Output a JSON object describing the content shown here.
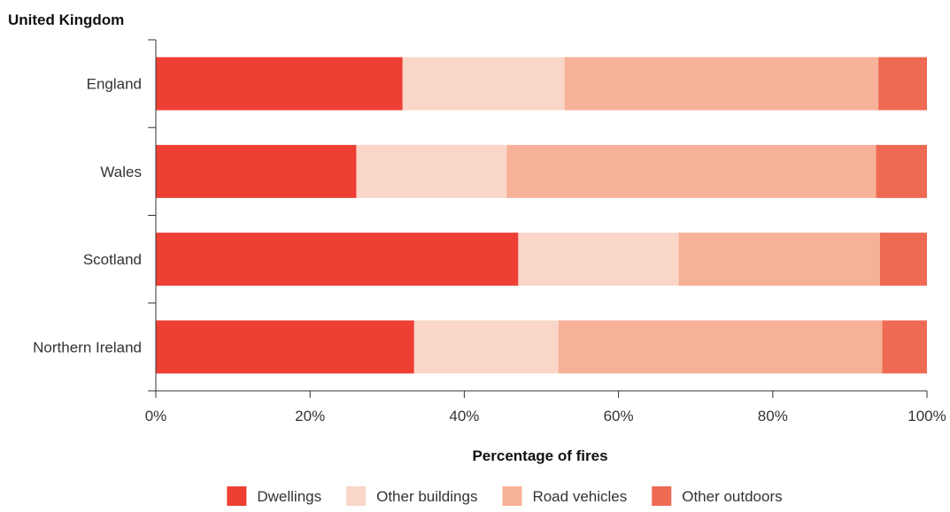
{
  "chart_data": {
    "type": "bar",
    "orientation": "horizontal",
    "stacked": true,
    "subtitle": "United Kingdom",
    "categories": [
      "England",
      "Wales",
      "Scotland",
      "Northern Ireland"
    ],
    "series": [
      {
        "name": "Dwellings",
        "color": "#ee3f34",
        "values": [
          32,
          26,
          47,
          33.5
        ]
      },
      {
        "name": "Other buildings",
        "color": "#fad6c8",
        "values": [
          21,
          19.5,
          20.8,
          18.7
        ]
      },
      {
        "name": "Road vehicles",
        "color": "#f7b198",
        "values": [
          40.7,
          47.9,
          26.1,
          42
        ]
      },
      {
        "name": "Other outdoors",
        "color": "#ef6a53",
        "values": [
          6.3,
          6.6,
          6.1,
          5.8
        ]
      }
    ],
    "xlabel": "Percentage of fires",
    "ylabel": "",
    "xlim": [
      0,
      100
    ],
    "x_ticks": [
      0,
      20,
      40,
      60,
      80,
      100
    ],
    "x_tick_labels": [
      "0%",
      "20%",
      "40%",
      "60%",
      "80%",
      "100%"
    ],
    "grid": false,
    "legend": "bottom"
  }
}
